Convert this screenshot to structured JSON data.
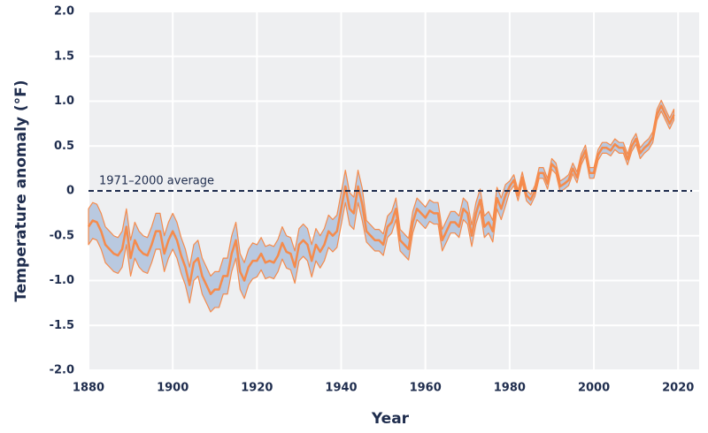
{
  "chart_data": {
    "type": "band-line",
    "xlabel": "Year",
    "ylabel": "Temperature anomaly (°F)",
    "x": [
      1880,
      1881,
      1882,
      1883,
      1884,
      1885,
      1886,
      1887,
      1888,
      1889,
      1890,
      1891,
      1892,
      1893,
      1894,
      1895,
      1896,
      1897,
      1898,
      1899,
      1900,
      1901,
      1902,
      1903,
      1904,
      1905,
      1906,
      1907,
      1908,
      1909,
      1910,
      1911,
      1912,
      1913,
      1914,
      1915,
      1916,
      1917,
      1918,
      1919,
      1920,
      1921,
      1922,
      1923,
      1924,
      1925,
      1926,
      1927,
      1928,
      1929,
      1930,
      1931,
      1932,
      1933,
      1934,
      1935,
      1936,
      1937,
      1938,
      1939,
      1940,
      1941,
      1942,
      1943,
      1944,
      1945,
      1946,
      1947,
      1948,
      1949,
      1950,
      1951,
      1952,
      1953,
      1954,
      1955,
      1956,
      1957,
      1958,
      1959,
      1960,
      1961,
      1962,
      1963,
      1964,
      1965,
      1966,
      1967,
      1968,
      1969,
      1970,
      1971,
      1972,
      1973,
      1974,
      1975,
      1976,
      1977,
      1978,
      1979,
      1980,
      1981,
      1982,
      1983,
      1984,
      1985,
      1986,
      1987,
      1988,
      1989,
      1990,
      1991,
      1992,
      1993,
      1994,
      1995,
      1996,
      1997,
      1998,
      1999,
      2000,
      2001,
      2002,
      2003,
      2004,
      2005,
      2006,
      2007,
      2008,
      2009,
      2010,
      2011,
      2012,
      2013,
      2014,
      2015,
      2016,
      2017,
      2018,
      2019
    ],
    "series": [
      {
        "color": "#f58b4c",
        "band_color": "#b9c9e0",
        "values": [
          -0.4,
          -0.33,
          -0.35,
          -0.45,
          -0.6,
          -0.65,
          -0.7,
          -0.72,
          -0.65,
          -0.4,
          -0.75,
          -0.55,
          -0.65,
          -0.7,
          -0.72,
          -0.6,
          -0.45,
          -0.45,
          -0.7,
          -0.55,
          -0.45,
          -0.55,
          -0.72,
          -0.85,
          -1.05,
          -0.8,
          -0.75,
          -0.95,
          -1.05,
          -1.15,
          -1.1,
          -1.1,
          -0.95,
          -0.95,
          -0.7,
          -0.55,
          -0.9,
          -1.0,
          -0.85,
          -0.78,
          -0.78,
          -0.7,
          -0.8,
          -0.78,
          -0.8,
          -0.72,
          -0.58,
          -0.68,
          -0.7,
          -0.85,
          -0.6,
          -0.55,
          -0.6,
          -0.78,
          -0.6,
          -0.68,
          -0.6,
          -0.45,
          -0.5,
          -0.45,
          -0.2,
          0.05,
          -0.2,
          -0.25,
          0.05,
          -0.15,
          -0.45,
          -0.5,
          -0.55,
          -0.55,
          -0.6,
          -0.4,
          -0.35,
          -0.2,
          -0.55,
          -0.6,
          -0.65,
          -0.35,
          -0.2,
          -0.25,
          -0.3,
          -0.22,
          -0.25,
          -0.25,
          -0.55,
          -0.45,
          -0.35,
          -0.35,
          -0.4,
          -0.2,
          -0.25,
          -0.5,
          -0.25,
          -0.1,
          -0.4,
          -0.35,
          -0.45,
          -0.08,
          -0.2,
          -0.05,
          0.05,
          0.12,
          -0.05,
          0.15,
          -0.05,
          -0.1,
          0.0,
          0.2,
          0.2,
          0.08,
          0.3,
          0.25,
          0.05,
          0.08,
          0.12,
          0.25,
          0.15,
          0.35,
          0.45,
          0.2,
          0.2,
          0.4,
          0.48,
          0.48,
          0.45,
          0.52,
          0.48,
          0.48,
          0.35,
          0.5,
          0.58,
          0.42,
          0.48,
          0.52,
          0.6,
          0.85,
          0.95,
          0.85,
          0.75,
          0.85
        ],
        "error": [
          0.2,
          0.2,
          0.2,
          0.2,
          0.2,
          0.2,
          0.2,
          0.2,
          0.2,
          0.2,
          0.2,
          0.2,
          0.2,
          0.2,
          0.2,
          0.2,
          0.2,
          0.2,
          0.2,
          0.2,
          0.2,
          0.2,
          0.2,
          0.2,
          0.2,
          0.2,
          0.2,
          0.2,
          0.2,
          0.2,
          0.2,
          0.2,
          0.2,
          0.2,
          0.2,
          0.2,
          0.2,
          0.2,
          0.2,
          0.2,
          0.18,
          0.18,
          0.18,
          0.18,
          0.18,
          0.18,
          0.18,
          0.18,
          0.18,
          0.18,
          0.18,
          0.18,
          0.18,
          0.18,
          0.18,
          0.18,
          0.18,
          0.18,
          0.18,
          0.18,
          0.18,
          0.18,
          0.18,
          0.18,
          0.18,
          0.18,
          0.12,
          0.12,
          0.12,
          0.12,
          0.12,
          0.12,
          0.12,
          0.12,
          0.12,
          0.12,
          0.12,
          0.12,
          0.12,
          0.12,
          0.12,
          0.12,
          0.12,
          0.12,
          0.12,
          0.12,
          0.12,
          0.12,
          0.12,
          0.12,
          0.12,
          0.12,
          0.12,
          0.12,
          0.12,
          0.12,
          0.12,
          0.12,
          0.12,
          0.12,
          0.06,
          0.06,
          0.06,
          0.06,
          0.06,
          0.06,
          0.06,
          0.06,
          0.06,
          0.06,
          0.06,
          0.06,
          0.06,
          0.06,
          0.06,
          0.06,
          0.06,
          0.06,
          0.06,
          0.06,
          0.06,
          0.06,
          0.06,
          0.06,
          0.06,
          0.06,
          0.06,
          0.06,
          0.06,
          0.06,
          0.06,
          0.06,
          0.06,
          0.06,
          0.06,
          0.06,
          0.06,
          0.06,
          0.06,
          0.06
        ]
      }
    ],
    "reference_line": {
      "value": 0,
      "label": "1971–2000 average"
    },
    "xlim": [
      1880,
      2025
    ],
    "xticks": [
      1880,
      1900,
      1920,
      1940,
      1960,
      1980,
      2000,
      2020
    ],
    "ylim": [
      -2,
      2
    ],
    "yticks": [
      {
        "value": -2,
        "label": "-2.0"
      },
      -1.5,
      {
        "value": -1,
        "label": "-1.0"
      },
      -0.5,
      0,
      0.5,
      {
        "value": 1,
        "label": "1.0"
      },
      1.5,
      {
        "value": 2,
        "label": "2.0"
      }
    ],
    "grid": true
  }
}
